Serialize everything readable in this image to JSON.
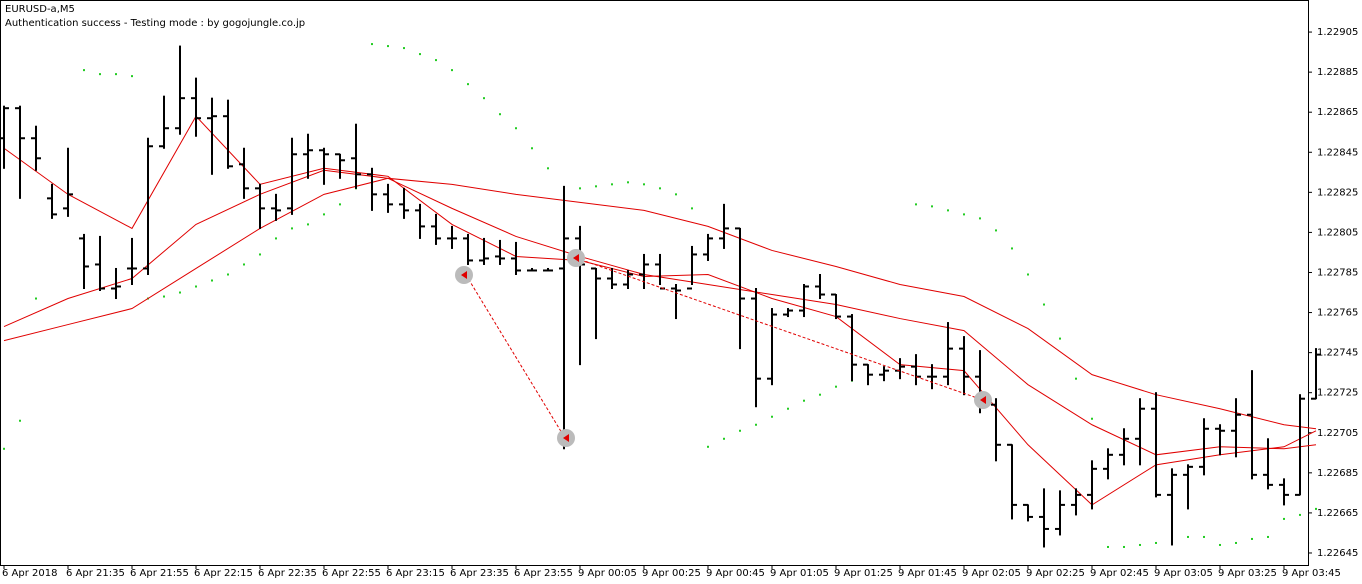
{
  "chart_data": {
    "type": "ohlc",
    "title": "EURUSD-a,M5",
    "subtitle": "Authentication success - Testing mode : by gogojungle.co.jp",
    "categories": [
      "6 Apr 2018",
      null,
      null,
      null,
      "6 Apr 21:35",
      null,
      null,
      null,
      "6 Apr 21:55",
      null,
      null,
      null,
      "6 Apr 22:15",
      null,
      null,
      null,
      "6 Apr 22:35",
      null,
      null,
      null,
      "6 Apr 22:55",
      null,
      null,
      null,
      "6 Apr 23:15",
      null,
      null,
      null,
      "6 Apr 23:35",
      null,
      null,
      null,
      "6 Apr 23:55",
      null,
      null,
      null,
      "9 Apr 00:05",
      null,
      null,
      null,
      "9 Apr 00:25",
      null,
      null,
      null,
      "9 Apr 00:45",
      null,
      null,
      null,
      "9 Apr 01:05",
      null,
      null,
      null,
      "9 Apr 01:25",
      null,
      null,
      null,
      "9 Apr 01:45",
      null,
      null,
      null,
      "9 Apr 02:05",
      null,
      null,
      null,
      "9 Apr 02:25",
      null,
      null,
      null,
      "9 Apr 02:45",
      null,
      null,
      null,
      "9 Apr 03:05",
      null,
      null,
      null,
      "9 Apr 03:25",
      null,
      null,
      null,
      "9 Apr 03:45",
      null,
      null
    ],
    "open": [
      1.22852,
      1.22867,
      1.22852,
      1.22822,
      1.22817,
      1.22802,
      1.22789,
      1.22777,
      1.22787,
      1.22787,
      1.22848,
      1.22857,
      1.22872,
      1.22862,
      1.22863,
      1.22839,
      1.22827,
      1.22817,
      1.22817,
      1.22844,
      1.22846,
      1.22844,
      1.22842,
      1.22834,
      1.22824,
      1.22819,
      1.22816,
      1.22808,
      1.22802,
      1.22802,
      1.22791,
      1.22793,
      1.22792,
      1.22786,
      1.22786,
      1.22787,
      1.22802,
      1.22787,
      1.22782,
      1.22779,
      1.22784,
      1.22789,
      1.22777,
      1.22777,
      1.22794,
      1.22802,
      1.22807,
      1.22772,
      1.22732,
      1.22764,
      1.22766,
      1.22778,
      1.22774,
      1.22763,
      1.22739,
      1.22734,
      1.22736,
      1.22738,
      1.22733,
      1.22733,
      1.22747,
      1.22733,
      1.22719,
      1.22699,
      1.22669,
      1.22663,
      1.22657,
      1.22669,
      1.22674,
      1.22687,
      1.22694,
      1.22702,
      1.22717,
      1.22674,
      1.22684,
      1.22688,
      1.22707,
      1.22706,
      1.22714,
      1.22684,
      1.22679,
      1.22674,
      1.22722
    ],
    "high": [
      1.22868,
      1.22868,
      1.22858,
      1.22829,
      1.22847,
      1.22804,
      1.22803,
      1.22787,
      1.22802,
      1.22852,
      1.22873,
      1.22898,
      1.22882,
      1.22872,
      1.22871,
      1.22847,
      1.22829,
      1.22824,
      1.22852,
      1.22854,
      1.22847,
      1.22844,
      1.22859,
      1.22837,
      1.22829,
      1.22827,
      1.22819,
      1.22814,
      1.22808,
      1.22804,
      1.22802,
      1.22801,
      1.228,
      1.22787,
      1.22787,
      1.22828,
      1.22808,
      1.22787,
      1.22787,
      1.22786,
      1.22794,
      1.22794,
      1.22779,
      1.22798,
      1.22804,
      1.22819,
      1.22807,
      1.22777,
      1.22767,
      1.22767,
      1.22779,
      1.22784,
      1.22774,
      1.22764,
      1.22739,
      1.22738,
      1.22742,
      1.22744,
      1.22739,
      1.2276,
      1.22753,
      1.22746,
      1.22722,
      1.22699,
      1.22669,
      1.22677,
      1.22676,
      1.22677,
      1.22691,
      1.22697,
      1.22707,
      1.22722,
      1.22725,
      1.22687,
      1.22689,
      1.22712,
      1.22709,
      1.22722,
      1.22736,
      1.22702,
      1.22682,
      1.22724,
      1.22747
    ],
    "low": [
      1.22837,
      1.22822,
      1.22836,
      1.22812,
      1.22813,
      1.22777,
      1.22776,
      1.22772,
      1.22779,
      1.22784,
      1.22847,
      1.22854,
      1.22853,
      1.22834,
      1.22837,
      1.22822,
      1.22807,
      1.22811,
      1.22814,
      1.22832,
      1.22829,
      1.22832,
      1.22827,
      1.22816,
      1.22815,
      1.22812,
      1.22802,
      1.22799,
      1.22797,
      1.22789,
      1.22789,
      1.22789,
      1.22784,
      1.22786,
      1.22786,
      1.22697,
      1.22739,
      1.22752,
      1.22777,
      1.22777,
      1.22777,
      1.22779,
      1.22762,
      1.22779,
      1.22791,
      1.22797,
      1.22747,
      1.22718,
      1.22729,
      1.22763,
      1.22763,
      1.22772,
      1.22762,
      1.22731,
      1.22729,
      1.22731,
      1.22732,
      1.22729,
      1.22727,
      1.22729,
      1.22724,
      1.22715,
      1.22691,
      1.22662,
      1.22661,
      1.22648,
      1.22654,
      1.22664,
      1.22667,
      1.22682,
      1.22689,
      1.22689,
      1.22673,
      1.22649,
      1.22667,
      1.22684,
      1.22694,
      1.22693,
      1.22682,
      1.22677,
      1.22669,
      1.22674,
      1.22722
    ],
    "close": [
      1.22867,
      1.22852,
      1.22842,
      1.22814,
      1.22824,
      1.22788,
      1.22777,
      1.22778,
      1.22787,
      1.22848,
      1.22857,
      1.22872,
      1.22862,
      1.22863,
      1.22838,
      1.22827,
      1.22817,
      1.22816,
      1.22844,
      1.22846,
      1.22844,
      1.22841,
      1.22834,
      1.22824,
      1.22819,
      1.22816,
      1.22808,
      1.22802,
      1.22802,
      1.22791,
      1.22792,
      1.22792,
      1.22786,
      1.22786,
      1.22786,
      1.22802,
      1.22789,
      1.22782,
      1.22779,
      1.22784,
      1.22789,
      1.22777,
      1.22776,
      1.22794,
      1.22802,
      1.22807,
      1.22772,
      1.22732,
      1.22764,
      1.22766,
      1.22778,
      1.22774,
      1.22763,
      1.22739,
      1.22734,
      1.22736,
      1.22738,
      1.22733,
      1.22733,
      1.22747,
      1.22733,
      1.22719,
      1.22699,
      1.22669,
      1.22663,
      1.22657,
      1.22669,
      1.22674,
      1.22687,
      1.22694,
      1.22702,
      1.22717,
      1.22674,
      1.22684,
      1.22688,
      1.22707,
      1.22706,
      1.22714,
      1.22684,
      1.22679,
      1.22674,
      1.22722,
      1.22744
    ],
    "color": "#000000",
    "overlays": [
      {
        "color": "#e00000",
        "x": [
          0,
          4,
          8,
          12,
          16,
          20,
          24,
          28,
          32,
          36,
          40,
          44,
          48,
          52,
          56,
          60,
          64,
          68,
          72,
          76,
          80,
          82
        ],
        "values": [
          1.22847,
          1.22824,
          1.22807,
          1.22863,
          1.22829,
          1.22837,
          1.22833,
          1.22809,
          1.22793,
          1.22791,
          1.22783,
          1.22784,
          1.22772,
          1.22763,
          1.22739,
          1.22736,
          1.22699,
          1.22669,
          1.22689,
          1.22694,
          1.22698,
          1.22706
        ]
      },
      {
        "color": "#e00000",
        "x": [
          0,
          4,
          8,
          12,
          16,
          20,
          24,
          28,
          32,
          36,
          40,
          44,
          48,
          52,
          56,
          60,
          64,
          68,
          72,
          76,
          80,
          82
        ],
        "values": [
          1.22751,
          1.22759,
          1.22767,
          1.22787,
          1.22807,
          1.22824,
          1.22832,
          1.22829,
          1.22824,
          1.2282,
          1.22816,
          1.22808,
          1.22796,
          1.22788,
          1.22779,
          1.22773,
          1.22757,
          1.22734,
          1.22724,
          1.22717,
          1.22709,
          1.22707
        ]
      },
      {
        "color": "#e00000",
        "x": [
          0,
          4,
          8,
          12,
          16,
          20,
          24,
          28,
          32,
          36,
          40,
          44,
          48,
          52,
          56,
          60,
          64,
          68,
          72,
          76,
          80,
          82
        ],
        "values": [
          1.22758,
          1.22772,
          1.22782,
          1.22809,
          1.22824,
          1.22836,
          1.22832,
          1.22817,
          1.22803,
          1.22793,
          1.22784,
          1.22779,
          1.22774,
          1.22769,
          1.22762,
          1.22756,
          1.22729,
          1.22709,
          1.22694,
          1.22698,
          1.22697,
          1.22699
        ]
      }
    ],
    "sar": {
      "color": "#22cc22",
      "x": [
        0,
        1,
        2,
        5,
        6,
        7,
        8,
        9,
        10,
        11,
        12,
        13,
        14,
        15,
        16,
        17,
        18,
        19,
        20,
        21,
        22,
        23,
        24,
        25,
        26,
        27,
        28,
        29,
        30,
        31,
        32,
        33,
        34,
        35,
        36,
        37,
        38,
        39,
        40,
        41,
        42,
        43,
        44,
        45,
        46,
        47,
        48,
        49,
        50,
        51,
        52,
        53,
        54,
        55,
        56,
        57,
        58,
        59,
        60,
        61,
        62,
        63,
        64,
        65,
        66,
        67,
        68,
        69,
        70,
        71,
        72,
        73,
        74,
        75,
        76,
        77,
        78,
        79,
        80,
        81,
        82
      ],
      "values": [
        1.22697,
        1.22711,
        1.22772,
        1.22886,
        1.22884,
        1.22884,
        1.22883,
        1.22772,
        1.22773,
        1.22775,
        1.22778,
        1.22781,
        1.22784,
        1.22789,
        1.22794,
        1.22802,
        1.22807,
        1.22809,
        1.22814,
        1.22819,
        1.22827,
        1.22899,
        1.22898,
        1.22897,
        1.22894,
        1.22891,
        1.22886,
        1.22879,
        1.22872,
        1.22864,
        1.22857,
        1.22847,
        1.22837,
        1.22784,
        1.22827,
        1.22828,
        1.22829,
        1.2283,
        1.22829,
        1.22827,
        1.22824,
        1.22817,
        1.22698,
        1.22702,
        1.22706,
        1.22709,
        1.22713,
        1.22717,
        1.22721,
        1.22724,
        1.22728,
        1.22731,
        1.22733,
        1.22735,
        1.22736,
        1.22819,
        1.22818,
        1.22816,
        1.22814,
        1.22812,
        1.22806,
        1.22797,
        1.22784,
        1.22769,
        1.22752,
        1.22732,
        1.22712,
        1.22648,
        1.22648,
        1.22649,
        1.2265,
        1.22652,
        1.22653,
        1.22653,
        1.22649,
        1.2265,
        1.22652,
        1.22653,
        1.22662,
        1.22664,
        1.22667
      ]
    },
    "ylim": [
      1.22639,
      1.22921
    ],
    "yticks": [
      1.22905,
      1.22885,
      1.22865,
      1.22845,
      1.22825,
      1.22805,
      1.22785,
      1.22765,
      1.22745,
      1.22725,
      1.22705,
      1.22685,
      1.22665,
      1.22645
    ]
  }
}
